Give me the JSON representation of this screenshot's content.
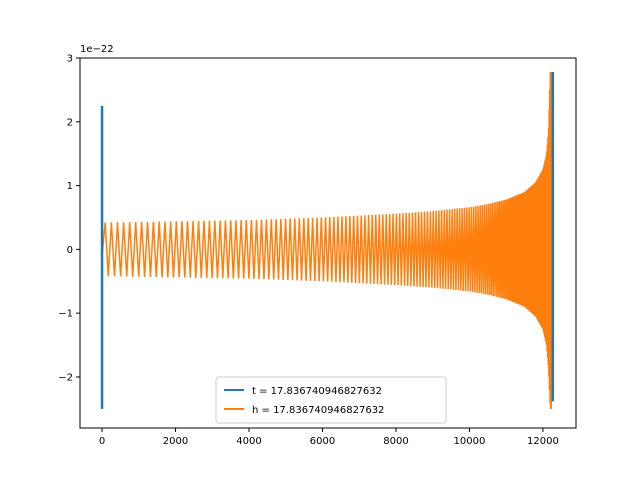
{
  "chart_data": {
    "type": "line",
    "title": "",
    "xlabel": "",
    "ylabel": "",
    "xlim": [
      -600,
      12900
    ],
    "ylim": [
      -2.8,
      3.0
    ],
    "y_offset_text": "1e−22",
    "x_ticks": [
      0,
      2000,
      4000,
      6000,
      8000,
      10000,
      12000
    ],
    "x_tick_labels": [
      "0",
      "2000",
      "4000",
      "6000",
      "8000",
      "10000",
      "12000"
    ],
    "y_ticks": [
      -2,
      -1,
      0,
      1,
      2,
      3
    ],
    "y_tick_labels": [
      "−2",
      "−1",
      "0",
      "1",
      "2",
      "3"
    ],
    "grid": false,
    "legend_position": "lower-center",
    "series": [
      {
        "name": "t = 17.836740946827632",
        "color": "#1f77b4",
        "segments": [
          {
            "x": [
              0,
              0
            ],
            "y": [
              -2.5,
              2.25
            ]
          },
          {
            "x": [
              12270,
              12270
            ],
            "y": [
              -2.38,
              2.78
            ]
          }
        ]
      },
      {
        "name": "h = 17.836740946827632",
        "color": "#ff7f0e",
        "envelope": {
          "x": [
            0,
            60,
            1000,
            2000,
            3000,
            4000,
            5000,
            6000,
            7000,
            8000,
            9000,
            10000,
            10500,
            11000,
            11500,
            11800,
            12000,
            12100,
            12150,
            12200,
            12230
          ],
          "upper": [
            -0.1,
            0.42,
            0.43,
            0.44,
            0.45,
            0.46,
            0.48,
            0.5,
            0.53,
            0.56,
            0.6,
            0.66,
            0.71,
            0.78,
            0.9,
            1.05,
            1.25,
            1.5,
            1.85,
            2.78,
            2.78
          ],
          "lower": [
            -0.1,
            -0.42,
            -0.43,
            -0.44,
            -0.45,
            -0.46,
            -0.48,
            -0.5,
            -0.53,
            -0.56,
            -0.6,
            -0.66,
            -0.71,
            -0.78,
            -0.9,
            -1.05,
            -1.25,
            -1.5,
            -1.85,
            -2.5,
            -2.5
          ]
        }
      }
    ]
  }
}
